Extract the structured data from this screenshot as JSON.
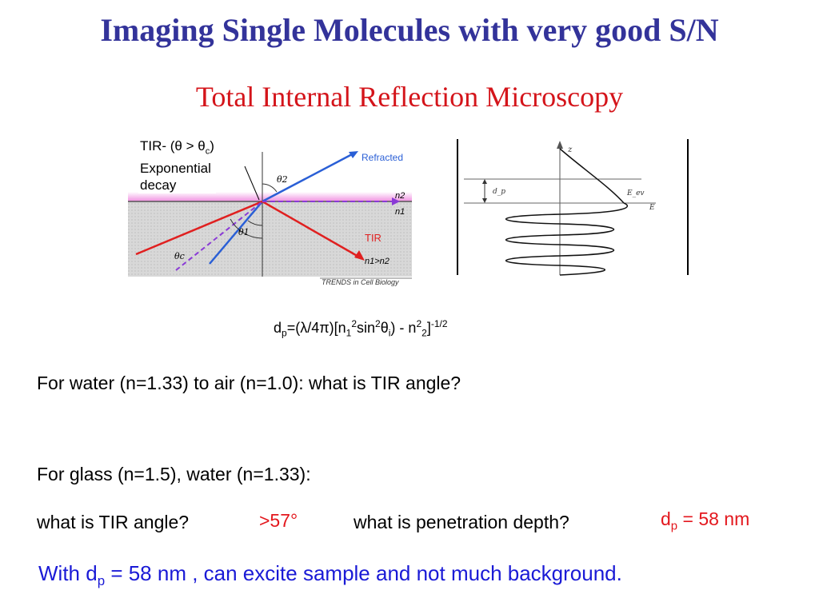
{
  "slide": {
    "title": "Imaging Single Molecules with very good S/N",
    "subtitle": "Total Internal Reflection Microscopy"
  },
  "figure_left": {
    "tir_label_line1": "TIR- (θ > θ",
    "tir_label_sub": "c",
    "tir_label_close": ")",
    "tir_label_line2": "Exponential",
    "tir_label_line3": "decay",
    "refracted": "Refracted",
    "tir": "TIR",
    "theta1": "θ1",
    "theta2": "θ2",
    "thetac": "θc",
    "n1": "n1",
    "n2": "n2",
    "n1_gt_n2": "n1>n2",
    "credit": "TRENDS in Cell Biology"
  },
  "figure_right": {
    "z_label": "z",
    "dp_label": "d_p",
    "e_ev_label": "E_ev",
    "e_label": "E"
  },
  "formula": {
    "d": "d",
    "p": "p",
    "eq": "=(λ/4π)[n",
    "one": "1",
    "two": "2",
    "sin": "sin",
    "theta": "θ",
    "i": "i",
    "minus": ") -  n",
    "close": "]",
    "exp": "-1/2"
  },
  "questions": {
    "q1": "For water (n=1.33) to air (n=1.0): what is TIR angle?",
    "q2": "For glass (n=1.5), water (n=1.33):",
    "q3": "what is TIR angle?",
    "a3": ">57°",
    "q4": "what is penetration depth?",
    "a4_d": "d",
    "a4_sub": "p",
    "a4_rest": " = 58 nm"
  },
  "note": {
    "prefix": "With d",
    "sub": "p",
    "rest": " = 58 nm , can excite sample and not much background."
  },
  "colors": {
    "title": "#33339a",
    "subtitle": "#d4141a",
    "answers": "#e3171d",
    "note": "#1a1ad6"
  }
}
